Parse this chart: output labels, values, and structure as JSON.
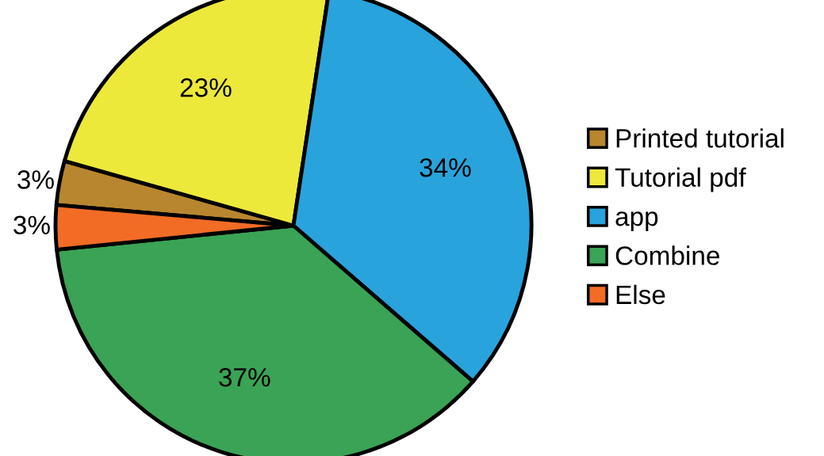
{
  "chart_data": {
    "type": "pie",
    "categories": [
      "Printed tutorial",
      "Tutorial pdf",
      "app",
      "Combine",
      "Else"
    ],
    "values": [
      3,
      23,
      34,
      37,
      3
    ],
    "colors": [
      "#b8862e",
      "#ede93a",
      "#29a3dc",
      "#3aa355",
      "#f26c26"
    ],
    "value_labels": [
      "3%",
      "23%",
      "34%",
      "37%",
      "3%"
    ],
    "legend": "right"
  }
}
